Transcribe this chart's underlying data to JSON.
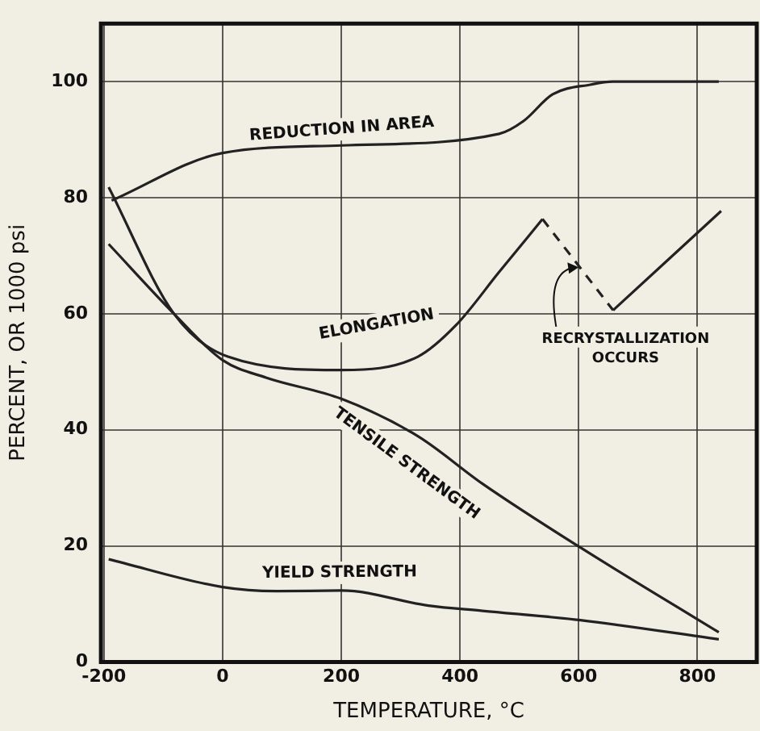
{
  "chart_data": {
    "type": "line",
    "xlabel": "TEMPERATURE, °C",
    "ylabel": "PERCENT, OR 1000 psi",
    "xlim": [
      -205,
      900
    ],
    "ylim": [
      0,
      110
    ],
    "xticks": [
      -200,
      0,
      200,
      400,
      600,
      800
    ],
    "yticks": [
      0,
      20,
      40,
      60,
      80,
      100
    ],
    "grid": true,
    "legend": false,
    "marker": "none",
    "series": [
      {
        "name": "REDUCTION IN AREA",
        "color": "#222222",
        "x": [
          -187,
          0,
          201,
          466,
          507,
          556,
          621,
          657,
          836
        ],
        "values": [
          79.5,
          87.7,
          89,
          91,
          93.2,
          97.8,
          99.5,
          100,
          100
        ]
      },
      {
        "name": "ELONGATION",
        "color": "#222222",
        "x": [
          -192,
          -82,
          9,
          201,
          329,
          393,
          466,
          539
        ],
        "values": [
          81.8,
          60,
          52.6,
          50.3,
          52.6,
          58,
          67.2,
          76.3
        ]
      },
      {
        "color": "#222222",
        "x": [
          658,
          840
        ],
        "values": [
          60.6,
          77.7
        ]
      },
      {
        "color": "#222222",
        "line_style": "dashed",
        "x": [
          539,
          658
        ],
        "values": [
          76.3,
          60.6
        ]
      },
      {
        "name": "TENSILE STRENGTH",
        "color": "#222222",
        "x": [
          -192,
          -82,
          0,
          73,
          201,
          329,
          438,
          603,
          836
        ],
        "values": [
          72,
          60,
          52,
          49,
          45.3,
          38.9,
          30.7,
          19.7,
          5.1
        ]
      },
      {
        "name": "YIELD STRENGTH",
        "color": "#222222",
        "x": [
          -192,
          0,
          90,
          201,
          347,
          438,
          603,
          836
        ],
        "values": [
          17.7,
          12.9,
          12.2,
          12.3,
          9.7,
          8.8,
          7.2,
          3.9
        ]
      }
    ],
    "annotations": [
      {
        "text": "RECRYSTALLIZATION\nOCCURS",
        "x": 600,
        "y": 68
      }
    ]
  }
}
